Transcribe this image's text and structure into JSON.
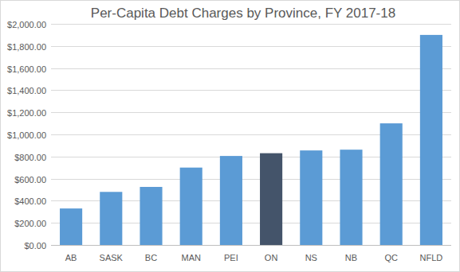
{
  "chart_data": {
    "type": "bar",
    "title": "Per-Capita Debt Charges by Province, FY 2017-18",
    "categories": [
      "AB",
      "SASK",
      "BC",
      "MAN",
      "PEI",
      "ON",
      "NS",
      "NB",
      "QC",
      "NFLD"
    ],
    "values": [
      330,
      480,
      525,
      700,
      805,
      830,
      855,
      862,
      1100,
      1900
    ],
    "colors": [
      "#5b9bd5",
      "#5b9bd5",
      "#5b9bd5",
      "#5b9bd5",
      "#5b9bd5",
      "#44546a",
      "#5b9bd5",
      "#5b9bd5",
      "#5b9bd5",
      "#5b9bd5"
    ],
    "ylim": [
      0,
      2000
    ],
    "yticks": [
      {
        "value": 0,
        "label": "$0.00"
      },
      {
        "value": 200,
        "label": "$200.00"
      },
      {
        "value": 400,
        "label": "$400.00"
      },
      {
        "value": 600,
        "label": "$600.00"
      },
      {
        "value": 800,
        "label": "$800.00"
      },
      {
        "value": 1000,
        "label": "$1,000.00"
      },
      {
        "value": 1200,
        "label": "$1,200.00"
      },
      {
        "value": 1400,
        "label": "$1,400.00"
      },
      {
        "value": 1600,
        "label": "$1,600.00"
      },
      {
        "value": 1800,
        "label": "$1,800.00"
      },
      {
        "value": 2000,
        "label": "$2,000.00"
      }
    ],
    "grid": true
  }
}
